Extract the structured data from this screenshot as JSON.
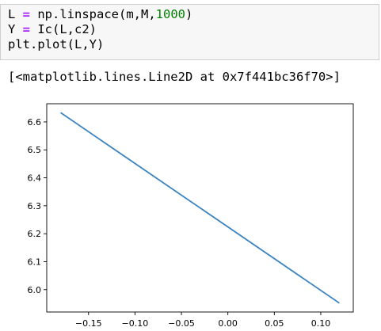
{
  "code_cell": {
    "line1": {
      "a": "L ",
      "op": "=",
      "b": " np.linspace(m,M,",
      "num": "1000",
      "c": ")"
    },
    "line2": {
      "a": "Y ",
      "op": "=",
      "b": " Ic(L,c2)"
    },
    "line3": "plt.plot(L,Y)"
  },
  "output": {
    "text": "[<matplotlib.lines.Line2D at 0x7f441bc36f70>]"
  },
  "colors": {
    "line": "#3c84c0",
    "axis": "#000000"
  },
  "chart_data": {
    "type": "line",
    "x": [
      -0.18,
      0.12
    ],
    "y": [
      6.633,
      5.952
    ],
    "xlim": [
      -0.195,
      0.135
    ],
    "ylim": [
      5.92,
      6.665
    ],
    "xticks": [
      -0.15,
      -0.1,
      -0.05,
      0.0,
      0.05,
      0.1
    ],
    "xtick_labels": [
      "−0.15",
      "−0.10",
      "−0.05",
      "0.00",
      "0.05",
      "0.10"
    ],
    "yticks": [
      6.0,
      6.1,
      6.2,
      6.3,
      6.4,
      6.5,
      6.6
    ],
    "ytick_labels": [
      "6.0",
      "6.1",
      "6.2",
      "6.3",
      "6.4",
      "6.5",
      "6.6"
    ],
    "grid": false,
    "legend": false
  }
}
